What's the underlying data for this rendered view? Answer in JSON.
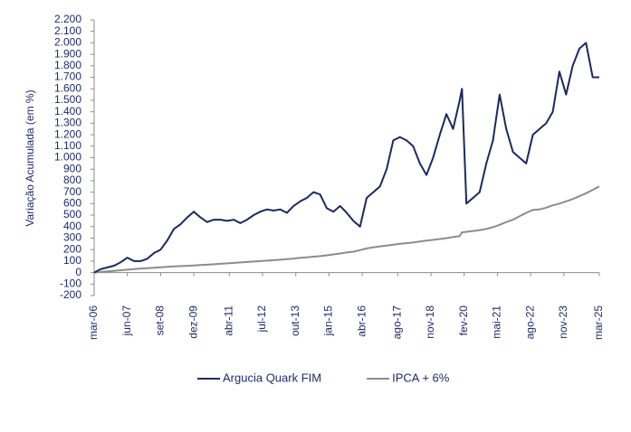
{
  "chart_data": {
    "type": "line",
    "y_label": "Variação Acumulada  (em %)",
    "x": [
      "2006-03",
      "2006-06",
      "2006-09",
      "2006-12",
      "2007-03",
      "2007-06",
      "2007-09",
      "2007-12",
      "2008-03",
      "2008-06",
      "2008-09",
      "2008-12",
      "2009-03",
      "2009-06",
      "2009-09",
      "2009-12",
      "2010-03",
      "2010-06",
      "2010-09",
      "2010-12",
      "2011-03",
      "2011-06",
      "2011-09",
      "2011-12",
      "2012-03",
      "2012-06",
      "2012-09",
      "2012-12",
      "2013-03",
      "2013-06",
      "2013-09",
      "2013-12",
      "2014-03",
      "2014-06",
      "2014-09",
      "2014-12",
      "2015-03",
      "2015-06",
      "2015-09",
      "2015-12",
      "2016-03",
      "2016-06",
      "2016-09",
      "2016-12",
      "2017-03",
      "2017-06",
      "2017-09",
      "2017-12",
      "2018-03",
      "2018-06",
      "2018-09",
      "2018-12",
      "2019-03",
      "2019-06",
      "2019-09",
      "2019-12",
      "2020-01",
      "2020-03",
      "2020-06",
      "2020-09",
      "2020-12",
      "2021-03",
      "2021-06",
      "2021-09",
      "2021-12",
      "2022-03",
      "2022-06",
      "2022-09",
      "2022-12",
      "2023-03",
      "2023-06",
      "2023-09",
      "2023-12",
      "2024-03",
      "2024-06",
      "2024-09",
      "2024-12",
      "2025-03"
    ],
    "series": [
      {
        "name": "Argucia Quark FIM",
        "color": "#1a2a5e",
        "values": [
          0,
          30,
          45,
          60,
          90,
          130,
          100,
          100,
          120,
          170,
          200,
          280,
          380,
          420,
          480,
          530,
          480,
          440,
          460,
          460,
          450,
          460,
          430,
          460,
          500,
          530,
          550,
          540,
          550,
          520,
          580,
          620,
          650,
          700,
          680,
          560,
          530,
          580,
          520,
          450,
          400,
          650,
          700,
          750,
          900,
          1150,
          1180,
          1150,
          1100,
          950,
          850,
          1000,
          1200,
          1380,
          1250,
          1500,
          1600,
          600,
          650,
          700,
          950,
          1150,
          1550,
          1250,
          1050,
          1000,
          950,
          1200,
          1250,
          1300,
          1400,
          1750,
          1550,
          1800,
          1950,
          2000,
          1700,
          1700
        ]
      },
      {
        "name": "IPCA + 6%",
        "color": "#8c8c8c",
        "values": [
          0,
          5,
          10,
          15,
          20,
          25,
          30,
          35,
          38,
          42,
          46,
          50,
          53,
          56,
          59,
          62,
          65,
          68,
          72,
          76,
          80,
          84,
          88,
          92,
          96,
          100,
          104,
          108,
          112,
          117,
          122,
          128,
          133,
          138,
          143,
          150,
          158,
          166,
          175,
          182,
          195,
          210,
          220,
          228,
          235,
          242,
          250,
          256,
          262,
          270,
          278,
          285,
          292,
          300,
          310,
          318,
          350,
          355,
          362,
          370,
          380,
          395,
          415,
          440,
          460,
          490,
          520,
          545,
          550,
          565,
          585,
          600,
          620,
          640,
          665,
          690,
          720,
          750
        ]
      }
    ],
    "xlim": [
      "2006-03",
      "2025-03"
    ],
    "xticks": [
      {
        "value": "2006-03",
        "label": "mar-06"
      },
      {
        "value": "2007-06",
        "label": "jun-07"
      },
      {
        "value": "2008-09",
        "label": "set-08"
      },
      {
        "value": "2009-12",
        "label": "dez-09"
      },
      {
        "value": "2011-04",
        "label": "abr-11"
      },
      {
        "value": "2012-07",
        "label": "jul-12"
      },
      {
        "value": "2013-10",
        "label": "out-13"
      },
      {
        "value": "2015-01",
        "label": "jan-15"
      },
      {
        "value": "2016-04",
        "label": "abr-16"
      },
      {
        "value": "2017-08",
        "label": "ago-17"
      },
      {
        "value": "2018-11",
        "label": "nov-18"
      },
      {
        "value": "2020-02",
        "label": "fev-20"
      },
      {
        "value": "2021-05",
        "label": "mai-21"
      },
      {
        "value": "2022-08",
        "label": "ago-22"
      },
      {
        "value": "2023-11",
        "label": "nov-23"
      },
      {
        "value": "2025-03",
        "label": "mar-25"
      }
    ],
    "ylim": [
      -200,
      2200
    ],
    "yticks": [
      -200,
      -100,
      0,
      100,
      200,
      300,
      400,
      500,
      600,
      700,
      800,
      900,
      {
        "value": 1000,
        "label": "1.000"
      },
      {
        "value": 1100,
        "label": "1.100"
      },
      {
        "value": 1200,
        "label": "1.200"
      },
      {
        "value": 1300,
        "label": "1.300"
      },
      {
        "value": 1400,
        "label": "1.400"
      },
      {
        "value": 1500,
        "label": "1.500"
      },
      {
        "value": 1600,
        "label": "1.600"
      },
      {
        "value": 1700,
        "label": "1.700"
      },
      {
        "value": 1800,
        "label": "1.800"
      },
      {
        "value": 1900,
        "label": "1.900"
      },
      {
        "value": 2000,
        "label": "2.000"
      },
      {
        "value": 2100,
        "label": "2.100"
      },
      {
        "value": 2200,
        "label": "2.200"
      }
    ],
    "grid": false,
    "legend": "bottom"
  }
}
